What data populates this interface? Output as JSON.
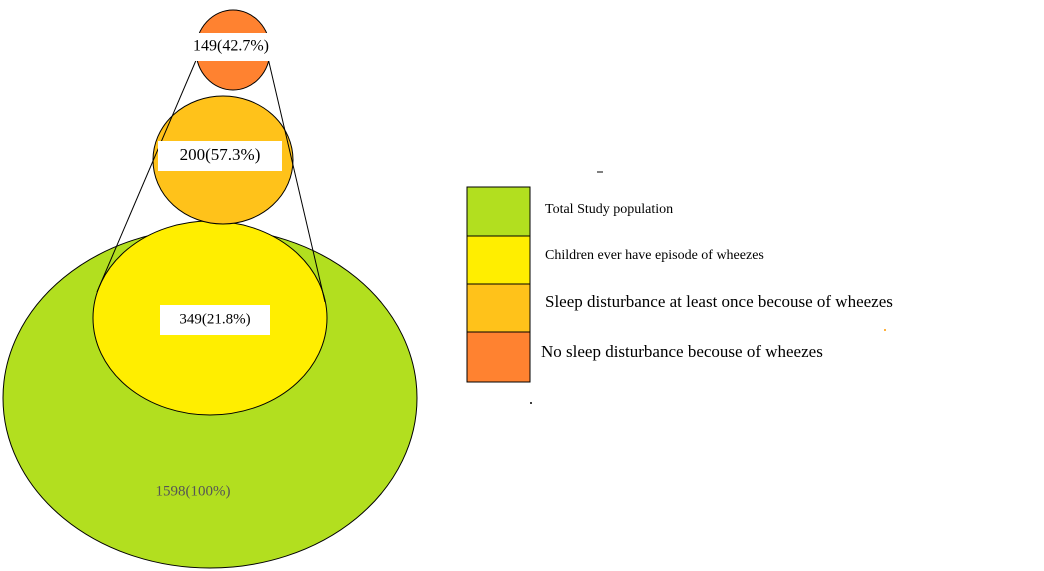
{
  "circles": [
    {
      "label": "1598(100%)"
    },
    {
      "label": "349(21.8%)"
    },
    {
      "label": "200(57.3%)"
    },
    {
      "label": "149(42.7%)"
    }
  ],
  "legend": [
    {
      "label": "Total Study population"
    },
    {
      "label": "Children ever have episode of wheezes"
    },
    {
      "label": "Sleep disturbance at least once becouse of  wheezes"
    },
    {
      "label": "No sleep disturbance becouse of wheezes"
    }
  ]
}
